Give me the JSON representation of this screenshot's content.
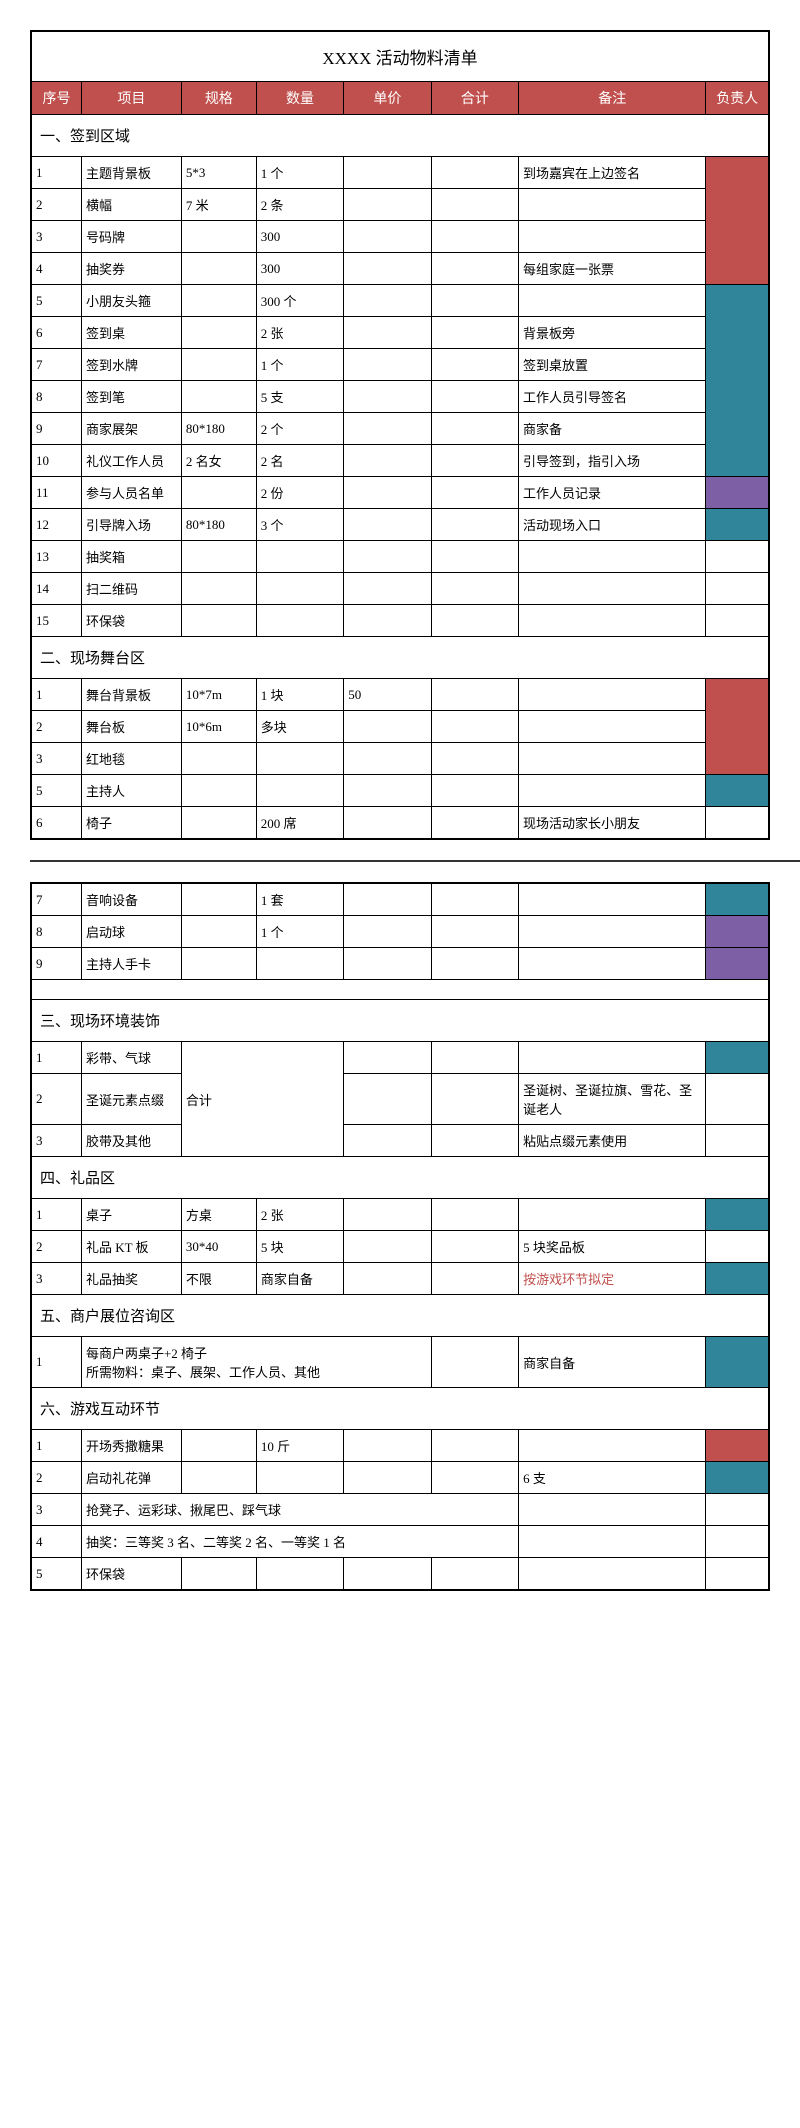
{
  "title": "XXXX 活动物料清单",
  "headers": {
    "seq": "序号",
    "item": "项目",
    "spec": "规格",
    "qty": "数量",
    "price": "单价",
    "total": "合计",
    "note": "备注",
    "owner": "负责人"
  },
  "sections": {
    "s1": "一、签到区域",
    "s2": "二、现场舞台区",
    "s3": "三、现场环境装饰",
    "s4": "四、礼品区",
    "s5": "五、商户展位咨询区",
    "s6": "六、游戏互动环节"
  },
  "s1rows": {
    "r1": {
      "seq": "1",
      "item": "主题背景板",
      "spec": "5*3",
      "qty": "1 个",
      "note": "到场嘉宾在上边签名"
    },
    "r2": {
      "seq": "2",
      "item": "横幅",
      "spec": "7 米",
      "qty": "2 条",
      "note": ""
    },
    "r3": {
      "seq": "3",
      "item": "号码牌",
      "spec": "",
      "qty": "300",
      "note": ""
    },
    "r4": {
      "seq": "4",
      "item": "抽奖券",
      "spec": "",
      "qty": "300",
      "note": "每组家庭一张票"
    },
    "r5": {
      "seq": "5",
      "item": "小朋友头箍",
      "spec": "",
      "qty": "300 个",
      "note": ""
    },
    "r6": {
      "seq": "6",
      "item": "签到桌",
      "spec": "",
      "qty": "2 张",
      "note": "背景板旁"
    },
    "r7": {
      "seq": "7",
      "item": "签到水牌",
      "spec": "",
      "qty": "1 个",
      "note": "签到桌放置"
    },
    "r8": {
      "seq": "8",
      "item": "签到笔",
      "spec": "",
      "qty": "5 支",
      "note": "工作人员引导签名"
    },
    "r9": {
      "seq": "9",
      "item": "商家展架",
      "spec": "80*180",
      "qty": "2 个",
      "note": "商家备"
    },
    "r10": {
      "seq": "10",
      "item": "礼仪工作人员",
      "spec": "2 名女",
      "qty": "2 名",
      "note": "引导签到，指引入场"
    },
    "r11": {
      "seq": "11",
      "item": "参与人员名单",
      "spec": "",
      "qty": "2 份",
      "note": "工作人员记录"
    },
    "r12": {
      "seq": "12",
      "item": "引导牌入场",
      "spec": "80*180",
      "qty": "3 个",
      "note": "活动现场入口"
    },
    "r13": {
      "seq": "13",
      "item": "抽奖箱",
      "spec": "",
      "qty": "",
      "note": ""
    },
    "r14": {
      "seq": "14",
      "item": "扫二维码",
      "spec": "",
      "qty": "",
      "note": ""
    },
    "r15": {
      "seq": "15",
      "item": "环保袋",
      "spec": "",
      "qty": "",
      "note": ""
    }
  },
  "s2rows": {
    "r1": {
      "seq": "1",
      "item": "舞台背景板",
      "spec": "10*7m",
      "qty": "1 块",
      "price": "50",
      "note": ""
    },
    "r2": {
      "seq": "2",
      "item": "舞台板",
      "spec": "10*6m",
      "qty": "多块",
      "price": "",
      "note": ""
    },
    "r3": {
      "seq": "3",
      "item": "红地毯",
      "spec": "",
      "qty": "",
      "price": "",
      "note": ""
    },
    "r5": {
      "seq": "5",
      "item": "主持人",
      "spec": "",
      "qty": "",
      "price": "",
      "note": ""
    },
    "r6": {
      "seq": "6",
      "item": "椅子",
      "spec": "",
      "qty": "200 席",
      "price": "",
      "note": "现场活动家长小朋友"
    },
    "r7": {
      "seq": "7",
      "item": "音响设备",
      "spec": "",
      "qty": "1 套",
      "price": "",
      "note": ""
    },
    "r8": {
      "seq": "8",
      "item": "启动球",
      "spec": "",
      "qty": "1 个",
      "price": "",
      "note": ""
    },
    "r9": {
      "seq": "9",
      "item": "主持人手卡",
      "spec": "",
      "qty": "",
      "price": "",
      "note": ""
    }
  },
  "s3rows": {
    "r1": {
      "seq": "1",
      "item": "彩带、气球",
      "note": ""
    },
    "r2": {
      "seq": "2",
      "item": "圣诞元素点缀",
      "note": "圣诞树、圣诞拉旗、雪花、圣诞老人"
    },
    "r3": {
      "seq": "3",
      "item": "胶带及其他",
      "note": "粘贴点缀元素使用"
    },
    "merged": "合计"
  },
  "s4rows": {
    "r1": {
      "seq": "1",
      "item": "桌子",
      "spec": "方桌",
      "qty": "2 张",
      "note": ""
    },
    "r2": {
      "seq": "2",
      "item": "礼品 KT 板",
      "spec": "30*40",
      "qty": "5 块",
      "note": "5 块奖品板"
    },
    "r3": {
      "seq": "3",
      "item": "礼品抽奖",
      "spec": "不限",
      "qty": "商家自备",
      "note": "按游戏环节拟定"
    }
  },
  "s5rows": {
    "r1": {
      "seq": "1",
      "desc": "每商户两桌子+2 椅子\n所需物料：桌子、展架、工作人员、其他",
      "note": "商家自备"
    }
  },
  "s6rows": {
    "r1": {
      "seq": "1",
      "item": "开场秀撒糖果",
      "spec": "",
      "qty": "10 斤",
      "note": ""
    },
    "r2": {
      "seq": "2",
      "item": "启动礼花弹",
      "spec": "",
      "qty": "",
      "note": "6 支"
    },
    "r3": {
      "seq": "3",
      "item": "抢凳子、运彩球、揪尾巴、踩气球"
    },
    "r4": {
      "seq": "4",
      "item": "抽奖：三等奖 3 名、二等奖 2 名、一等奖 1 名"
    },
    "r5": {
      "seq": "5",
      "item": "环保袋"
    }
  },
  "colors": {
    "headerBg": "#c0504d",
    "red": "#c0504d",
    "teal": "#31859b",
    "purple": "#7c5fa5"
  }
}
